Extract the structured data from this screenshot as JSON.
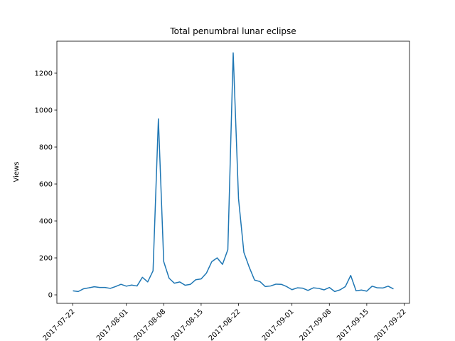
{
  "chart_data": {
    "type": "line",
    "title": "Total penumbral lunar eclipse",
    "ylabel": "Views",
    "x": [
      "2017-07-22",
      "2017-07-23",
      "2017-07-24",
      "2017-07-25",
      "2017-07-26",
      "2017-07-27",
      "2017-07-28",
      "2017-07-29",
      "2017-07-30",
      "2017-07-31",
      "2017-08-01",
      "2017-08-02",
      "2017-08-03",
      "2017-08-04",
      "2017-08-05",
      "2017-08-06",
      "2017-08-07",
      "2017-08-08",
      "2017-08-09",
      "2017-08-10",
      "2017-08-11",
      "2017-08-12",
      "2017-08-13",
      "2017-08-14",
      "2017-08-15",
      "2017-08-16",
      "2017-08-17",
      "2017-08-18",
      "2017-08-19",
      "2017-08-20",
      "2017-08-21",
      "2017-08-22",
      "2017-08-23",
      "2017-08-24",
      "2017-08-25",
      "2017-08-26",
      "2017-08-27",
      "2017-08-28",
      "2017-08-29",
      "2017-08-30",
      "2017-08-31",
      "2017-09-01",
      "2017-09-02",
      "2017-09-03",
      "2017-09-04",
      "2017-09-05",
      "2017-09-06",
      "2017-09-07",
      "2017-09-08",
      "2017-09-09",
      "2017-09-10",
      "2017-09-11",
      "2017-09-12",
      "2017-09-13",
      "2017-09-14",
      "2017-09-15",
      "2017-09-16",
      "2017-09-17",
      "2017-09-18",
      "2017-09-19",
      "2017-09-20"
    ],
    "series": [
      {
        "color": "#1f77b4",
        "values": [
          22,
          18,
          33,
          38,
          44,
          40,
          40,
          35,
          45,
          57,
          47,
          53,
          48,
          95,
          70,
          130,
          953,
          180,
          90,
          63,
          70,
          52,
          57,
          82,
          86,
          118,
          180,
          200,
          165,
          245,
          1310,
          520,
          230,
          150,
          80,
          72,
          45,
          48,
          58,
          57,
          45,
          28,
          38,
          36,
          24,
          38,
          35,
          27,
          40,
          18,
          27,
          45,
          105,
          22,
          26,
          20,
          47,
          38,
          37,
          47,
          32
        ]
      }
    ],
    "xlim": [
      "2017-07-19",
      "2017-09-23"
    ],
    "xticks": [
      "2017-07-22",
      "2017-08-01",
      "2017-08-08",
      "2017-08-15",
      "2017-08-22",
      "2017-09-01",
      "2017-09-08",
      "2017-09-15",
      "2017-09-22"
    ],
    "ylim": [
      -46,
      1373
    ],
    "yticks": [
      0,
      200,
      400,
      600,
      800,
      1000,
      1200
    ]
  }
}
